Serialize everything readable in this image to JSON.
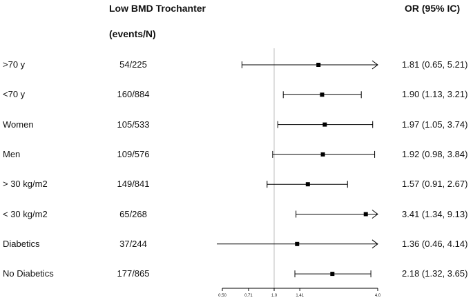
{
  "chart_data": {
    "type": "forest",
    "title": "Low BMD Trochanter",
    "events_header": "(events/N)",
    "or_header": "OR (95% IC)",
    "x_scale": "log",
    "reference_line": 1.0,
    "xticks": [
      0.5,
      0.71,
      1.0,
      1.41,
      4.0
    ],
    "xtick_labels": [
      "0.50",
      "0.71",
      "1.0",
      "1.41",
      "4.0"
    ],
    "xlim": [
      0.5,
      4.0
    ],
    "rows": [
      {
        "label": ">70 y",
        "events": "54/225",
        "or": 1.81,
        "lo": 0.65,
        "hi": 5.21,
        "or_text": "1.81 (0.65, 5.21)"
      },
      {
        "label": "<70 y",
        "events": "160/884",
        "or": 1.9,
        "lo": 1.13,
        "hi": 3.21,
        "or_text": "1.90 (1.13, 3.21)"
      },
      {
        "label": "Women",
        "events": "105/533",
        "or": 1.97,
        "lo": 1.05,
        "hi": 3.74,
        "or_text": "1.97 (1.05, 3.74)"
      },
      {
        "label": "Men",
        "events": "109/576",
        "or": 1.92,
        "lo": 0.98,
        "hi": 3.84,
        "or_text": "1.92 (0.98, 3.84)"
      },
      {
        "label": "> 30 kg/m2",
        "events": "149/841",
        "or": 1.57,
        "lo": 0.91,
        "hi": 2.67,
        "or_text": "1.57 (0.91, 2.67)"
      },
      {
        "label": "< 30 kg/m2",
        "events": "65/268",
        "or": 3.41,
        "lo": 1.34,
        "hi": 9.13,
        "or_text": "3.41 (1.34, 9.13)"
      },
      {
        "label": "Diabetics",
        "events": "37/244",
        "or": 1.36,
        "lo": 0.46,
        "hi": 4.14,
        "or_text": "1.36 (0.46, 4.14)"
      },
      {
        "label": "No Diabetics",
        "events": "177/865",
        "or": 2.18,
        "lo": 1.32,
        "hi": 3.65,
        "or_text": "2.18 (1.32, 3.65)"
      }
    ]
  }
}
